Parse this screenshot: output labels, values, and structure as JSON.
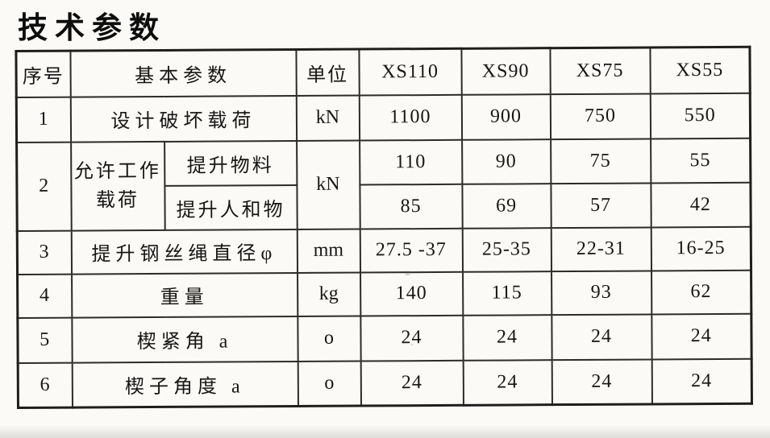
{
  "page_title": "技术参数",
  "table": {
    "headers": {
      "no": "序号",
      "param": "基本参数",
      "unit": "单位",
      "models": [
        "XS110",
        "XS90",
        "XS75",
        "XS55"
      ]
    },
    "rows": [
      {
        "no": "1",
        "param": "设计破坏载荷",
        "unit": "kN",
        "values": [
          "1100",
          "900",
          "750",
          "550"
        ]
      },
      {
        "no": "2",
        "param": "允许工作载荷",
        "unit": "kN",
        "sub": [
          {
            "label": "提升物料",
            "values": [
              "110",
              "90",
              "75",
              "55"
            ]
          },
          {
            "label": "提升人和物",
            "values": [
              "85",
              "69",
              "57",
              "42"
            ]
          }
        ]
      },
      {
        "no": "3",
        "param": "提升钢丝绳直径φ",
        "unit": "mm",
        "values": [
          "27.5 -37",
          "25-35",
          "22-31",
          "16-25"
        ]
      },
      {
        "no": "4",
        "param": "重量",
        "unit": "kg",
        "values": [
          "140",
          "115",
          "93",
          "62"
        ]
      },
      {
        "no": "5",
        "param": "楔紧角 a",
        "unit": "o",
        "values": [
          "24",
          "24",
          "24",
          "24"
        ]
      },
      {
        "no": "6",
        "param": "楔子角度 a",
        "unit": "o",
        "values": [
          "24",
          "24",
          "24",
          "24"
        ]
      }
    ]
  }
}
